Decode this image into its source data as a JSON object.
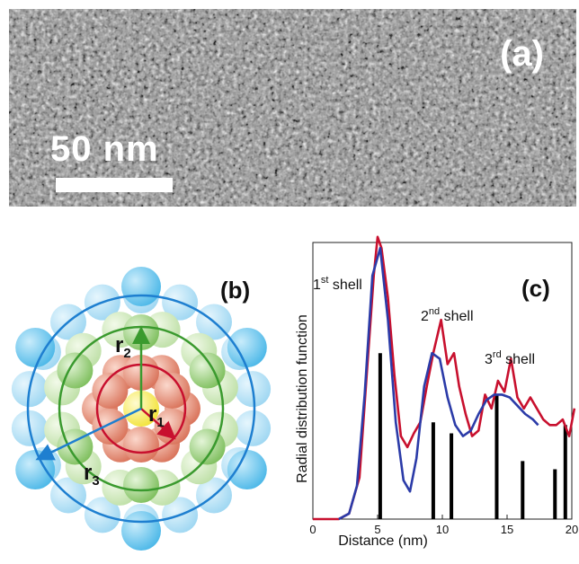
{
  "panel_a": {
    "label": "(a)",
    "scale_text": "50 nm",
    "colors": {
      "background": "#8a8a8a",
      "scale": "#ffffff"
    }
  },
  "panel_b": {
    "label": "(b)",
    "radius_labels": {
      "r1": "r",
      "r1_sub": "1",
      "r2": "r",
      "r2_sub": "2",
      "r3": "r",
      "r3_sub": "3"
    },
    "colors": {
      "center": "#f2e33a",
      "shell1": "#d9735a",
      "shell2": "#7fbf5e",
      "shell3": "#4db8e8",
      "ring1": "#c8102e",
      "ring2": "#3a9a2e",
      "ring3": "#1e7fd0"
    }
  },
  "chart_data": {
    "type": "line",
    "label": "(c)",
    "xlabel": "Distance (nm)",
    "ylabel": "Radial distribution function",
    "xlim": [
      0,
      20
    ],
    "ylim": [
      0,
      1
    ],
    "x_ticks": [
      "0",
      "5",
      "10",
      "15",
      "20"
    ],
    "annotations": [
      {
        "text": "1",
        "sup": "st",
        "after": " shell"
      },
      {
        "text": "2",
        "sup": "nd",
        "after": " shell"
      },
      {
        "text": "3",
        "sup": "rd",
        "after": " shell"
      }
    ],
    "series": [
      {
        "color": "#c8102e",
        "x": [
          0,
          2.0,
          2.8,
          3.6,
          4.2,
          4.7,
          5.0,
          5.3,
          5.8,
          6.3,
          6.8,
          7.3,
          7.8,
          8.3,
          8.8,
          9.3,
          9.9,
          10.4,
          10.9,
          11.3,
          11.8,
          12.3,
          12.8,
          13.3,
          13.8,
          14.3,
          14.8,
          15.3,
          15.8,
          16.3,
          16.8,
          17.3,
          17.8,
          18.3,
          18.8,
          19.3,
          19.8,
          20.2
        ],
        "y": [
          0.0,
          0.0,
          0.02,
          0.15,
          0.55,
          0.88,
          1.02,
          0.98,
          0.8,
          0.52,
          0.3,
          0.26,
          0.31,
          0.35,
          0.48,
          0.6,
          0.72,
          0.56,
          0.6,
          0.48,
          0.38,
          0.3,
          0.32,
          0.45,
          0.4,
          0.5,
          0.46,
          0.58,
          0.44,
          0.4,
          0.44,
          0.4,
          0.36,
          0.34,
          0.34,
          0.36,
          0.3,
          0.4
        ]
      },
      {
        "color": "#2b3ba8",
        "x": [
          2.0,
          2.8,
          3.4,
          4.0,
          4.6,
          5.2,
          5.8,
          6.4,
          7.0,
          7.5,
          8.0,
          8.6,
          9.2,
          9.8,
          10.4,
          11.0,
          11.6,
          12.2,
          12.8,
          13.4,
          14.0,
          14.6,
          15.2,
          15.8,
          16.4,
          17.0,
          17.4
        ],
        "y": [
          0.0,
          0.02,
          0.12,
          0.45,
          0.88,
          0.98,
          0.72,
          0.35,
          0.14,
          0.1,
          0.22,
          0.48,
          0.6,
          0.58,
          0.44,
          0.34,
          0.3,
          0.32,
          0.38,
          0.43,
          0.45,
          0.45,
          0.44,
          0.41,
          0.38,
          0.36,
          0.34
        ]
      }
    ],
    "bars": {
      "color": "#000000",
      "x": [
        5.2,
        9.3,
        10.7,
        14.2,
        16.2,
        18.7,
        19.5
      ],
      "y": [
        0.6,
        0.35,
        0.31,
        0.45,
        0.21,
        0.18,
        0.34
      ]
    }
  }
}
